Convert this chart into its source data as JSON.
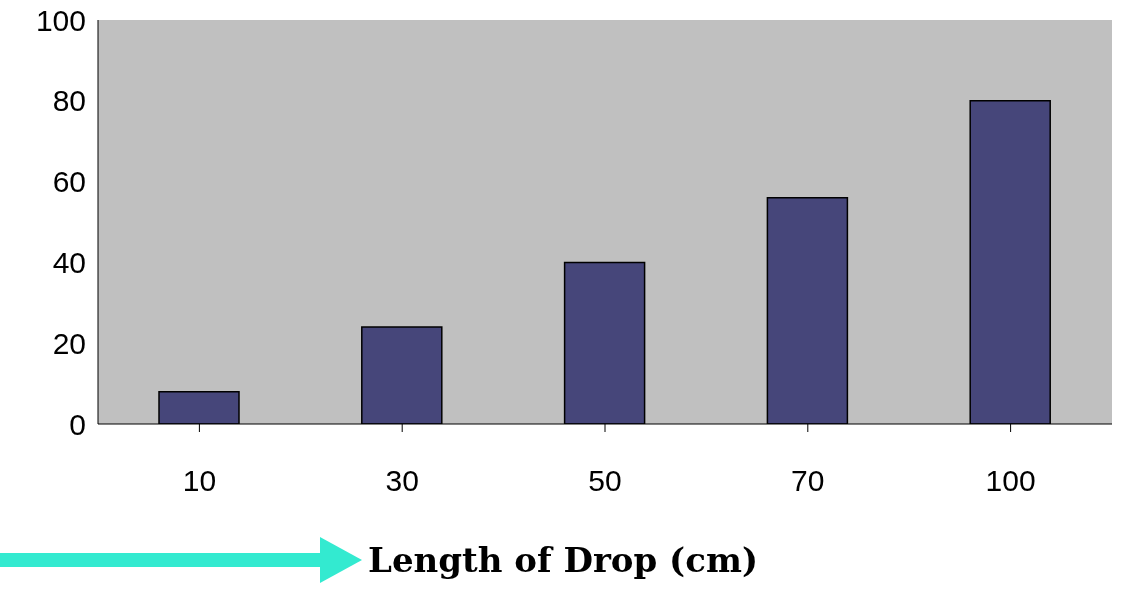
{
  "chart_data": {
    "type": "bar",
    "xlabel": "Length of Drop (cm)",
    "categories": [
      "10",
      "30",
      "50",
      "70",
      "100"
    ],
    "values": [
      8,
      24,
      40,
      56,
      80
    ],
    "color": "#46467a",
    "ylim": [
      0,
      100
    ],
    "yticks": [
      0,
      20,
      40,
      60,
      80,
      100
    ],
    "grid": false
  }
}
